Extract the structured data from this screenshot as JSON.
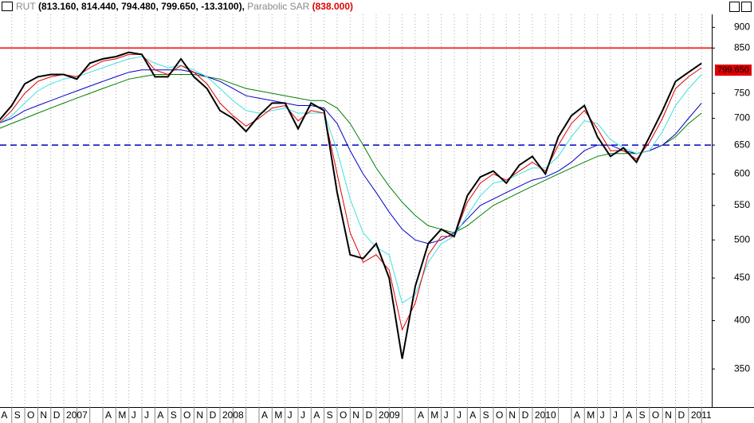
{
  "header": {
    "symbol": "RUT",
    "ohlc": "(813.160, 814.440, 794.480, 799.650, -13.3100),",
    "indicator": "Parabolic SAR",
    "indicator_value": "(838.000)"
  },
  "chart_data": {
    "type": "line",
    "log_scale": true,
    "grid": true,
    "categories": [
      "A",
      "S",
      "O",
      "N",
      "D",
      "2007",
      null,
      null,
      "A",
      "M",
      "J",
      "J",
      "A",
      "S",
      "O",
      "N",
      "D",
      "2008",
      null,
      null,
      "A",
      "M",
      "J",
      "J",
      "A",
      "S",
      "O",
      "N",
      "D",
      "2009",
      null,
      null,
      "A",
      "M",
      "J",
      "J",
      "A",
      "S",
      "O",
      "N",
      "D",
      "2010",
      null,
      null,
      "A",
      "M",
      "J",
      "J",
      "A",
      "S",
      "O",
      "N",
      "D",
      "2011",
      null
    ],
    "series": [
      {
        "color": "#008000",
        "values": [
          680,
          690,
          700,
          710,
          720,
          730,
          740,
          750,
          760,
          770,
          780,
          785,
          790,
          790,
          790,
          790,
          785,
          780,
          770,
          760,
          755,
          750,
          745,
          740,
          735,
          735,
          720,
          690,
          650,
          610,
          580,
          555,
          535,
          520,
          515,
          510,
          520,
          535,
          550,
          560,
          570,
          580,
          590,
          600,
          610,
          620,
          630,
          635,
          635,
          635,
          640,
          650,
          665,
          690,
          710
        ]
      },
      {
        "color": "#0000c8",
        "values": [
          690,
          700,
          715,
          725,
          735,
          745,
          755,
          765,
          775,
          785,
          795,
          800,
          800,
          800,
          800,
          795,
          785,
          775,
          760,
          745,
          740,
          735,
          730,
          725,
          725,
          720,
          690,
          640,
          600,
          570,
          540,
          515,
          500,
          495,
          500,
          510,
          530,
          550,
          560,
          570,
          580,
          590,
          595,
          605,
          620,
          640,
          650,
          650,
          640,
          635,
          640,
          650,
          670,
          700,
          730
        ]
      },
      {
        "color": "#40e0e0",
        "values": [
          690,
          705,
          730,
          755,
          770,
          780,
          785,
          795,
          805,
          815,
          825,
          830,
          815,
          805,
          810,
          800,
          785,
          760,
          735,
          715,
          710,
          715,
          720,
          710,
          710,
          710,
          640,
          560,
          510,
          490,
          480,
          420,
          430,
          470,
          495,
          505,
          535,
          565,
          585,
          590,
          600,
          610,
          610,
          630,
          665,
          695,
          690,
          660,
          645,
          635,
          640,
          675,
          725,
          760,
          790
        ]
      },
      {
        "color": "#e00000",
        "values": [
          690,
          715,
          750,
          775,
          785,
          790,
          785,
          805,
          820,
          825,
          835,
          835,
          800,
          790,
          810,
          795,
          770,
          730,
          705,
          685,
          700,
          720,
          725,
          695,
          715,
          710,
          600,
          510,
          470,
          480,
          460,
          390,
          420,
          480,
          505,
          505,
          555,
          585,
          600,
          590,
          605,
          620,
          605,
          650,
          690,
          715,
          680,
          640,
          640,
          625,
          655,
          700,
          760,
          785,
          805
        ]
      },
      {
        "color": "#000000",
        "values": [
          695,
          725,
          770,
          785,
          790,
          790,
          780,
          815,
          825,
          830,
          840,
          835,
          785,
          785,
          825,
          785,
          760,
          715,
          700,
          675,
          705,
          730,
          730,
          680,
          730,
          715,
          570,
          480,
          475,
          495,
          450,
          360,
          440,
          495,
          515,
          505,
          565,
          595,
          605,
          585,
          615,
          630,
          600,
          665,
          705,
          725,
          665,
          630,
          645,
          620,
          665,
          715,
          775,
          795,
          815
        ]
      }
    ],
    "ylim": [
      315,
      933
    ],
    "yticks": [
      350,
      400,
      450,
      500,
      550,
      600,
      650,
      700,
      750,
      850,
      900
    ],
    "hlines": [
      {
        "value": 850,
        "color": "#ff0000",
        "dash": false
      },
      {
        "value": 650,
        "color": "#0000c0",
        "dash": true
      }
    ],
    "last_value": {
      "value": 799.65,
      "label": "799.650",
      "color": "#e00000"
    }
  }
}
